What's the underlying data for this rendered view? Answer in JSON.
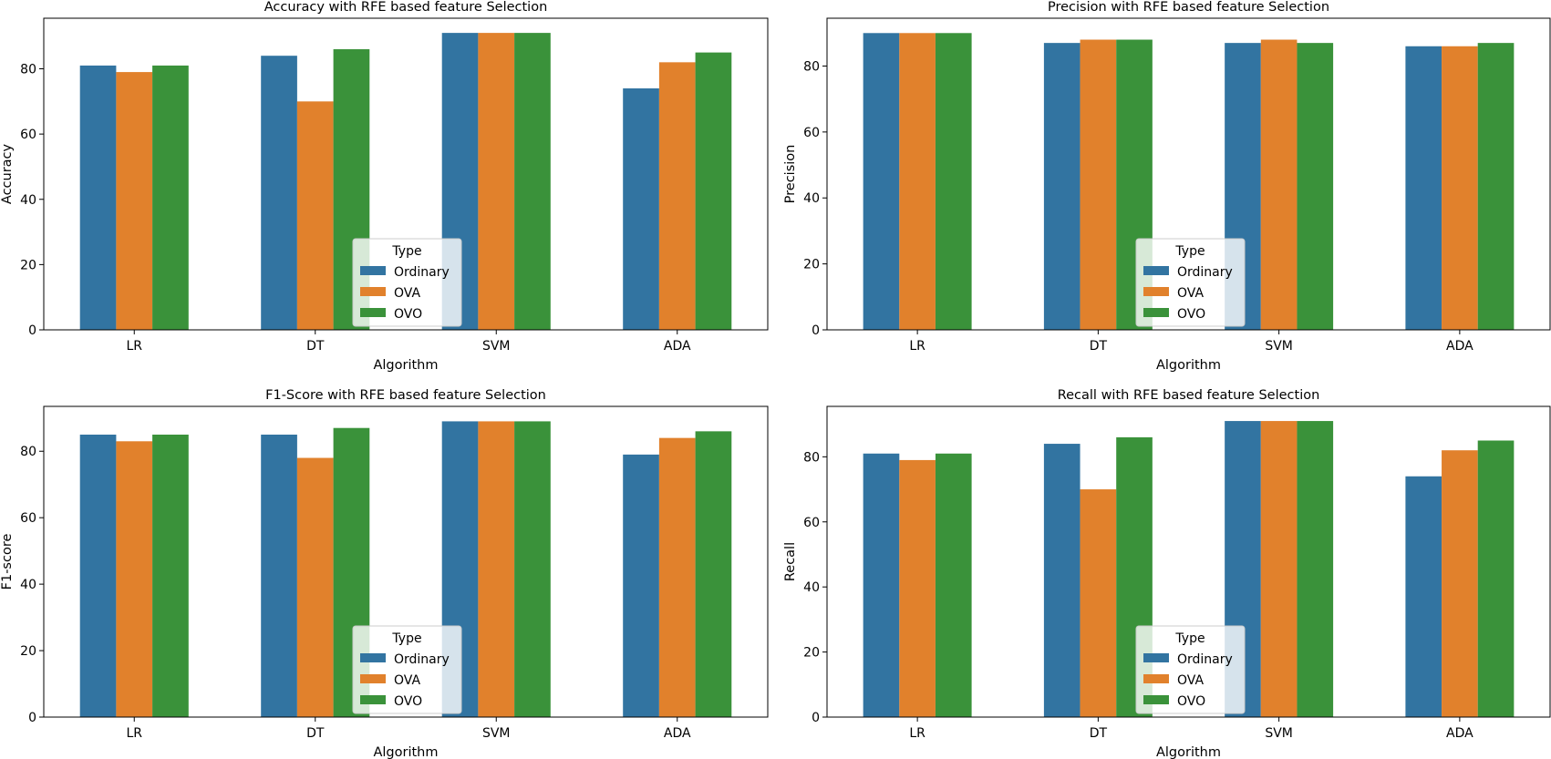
{
  "colors": {
    "Ordinary": "#3274a1",
    "OVA": "#e1812c",
    "OVO": "#3a923a"
  },
  "chart_data": [
    {
      "type": "bar",
      "title": "Accuracy with RFE based feature Selection",
      "xlabel": "Algorithm",
      "ylabel": "Accuracy",
      "categories": [
        "LR",
        "DT",
        "SVM",
        "ADA"
      ],
      "ylim": [
        0,
        95.5
      ],
      "yticks": [
        0,
        20,
        40,
        60,
        80
      ],
      "legend": {
        "title": "Type",
        "placement": "lower-center"
      },
      "series": [
        {
          "name": "Ordinary",
          "values": [
            81,
            84,
            91,
            74
          ]
        },
        {
          "name": "OVA",
          "values": [
            79,
            70,
            91,
            82
          ]
        },
        {
          "name": "OVO",
          "values": [
            81,
            86,
            91,
            85
          ]
        }
      ]
    },
    {
      "type": "bar",
      "title": "Precision with RFE based feature Selection",
      "xlabel": "Algorithm",
      "ylabel": "Precision",
      "categories": [
        "LR",
        "DT",
        "SVM",
        "ADA"
      ],
      "ylim": [
        0,
        94.5
      ],
      "yticks": [
        0,
        20,
        40,
        60,
        80
      ],
      "legend": {
        "title": "Type",
        "placement": "lower-center"
      },
      "series": [
        {
          "name": "Ordinary",
          "values": [
            90,
            87,
            87,
            86
          ]
        },
        {
          "name": "OVA",
          "values": [
            90,
            88,
            88,
            86
          ]
        },
        {
          "name": "OVO",
          "values": [
            90,
            88,
            87,
            87
          ]
        }
      ]
    },
    {
      "type": "bar",
      "title": "F1-Score with RFE based feature Selection",
      "xlabel": "Algorithm",
      "ylabel": "F1-score",
      "categories": [
        "LR",
        "DT",
        "SVM",
        "ADA"
      ],
      "ylim": [
        0,
        93.5
      ],
      "yticks": [
        0,
        20,
        40,
        60,
        80
      ],
      "legend": {
        "title": "Type",
        "placement": "lower-center"
      },
      "series": [
        {
          "name": "Ordinary",
          "values": [
            85,
            85,
            89,
            79
          ]
        },
        {
          "name": "OVA",
          "values": [
            83,
            78,
            89,
            84
          ]
        },
        {
          "name": "OVO",
          "values": [
            85,
            87,
            89,
            86
          ]
        }
      ]
    },
    {
      "type": "bar",
      "title": "Recall with RFE based feature Selection",
      "xlabel": "Algorithm",
      "ylabel": "Recall",
      "categories": [
        "LR",
        "DT",
        "SVM",
        "ADA"
      ],
      "ylim": [
        0,
        95.5
      ],
      "yticks": [
        0,
        20,
        40,
        60,
        80
      ],
      "legend": {
        "title": "Type",
        "placement": "lower-center"
      },
      "series": [
        {
          "name": "Ordinary",
          "values": [
            81,
            84,
            91,
            74
          ]
        },
        {
          "name": "OVA",
          "values": [
            79,
            70,
            91,
            82
          ]
        },
        {
          "name": "OVO",
          "values": [
            81,
            86,
            91,
            85
          ]
        }
      ]
    }
  ]
}
